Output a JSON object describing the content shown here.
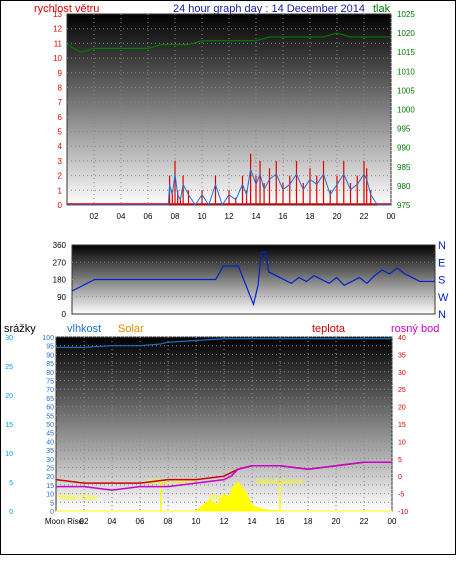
{
  "colors": {
    "wind_speed": "#e00000",
    "wind_gust_series": "#1f6fd0",
    "pressure": "#007a00",
    "direction": "#0022cc",
    "humidity": "#1f6fd0",
    "temperature": "#cc0000",
    "dewpoint": "#cc00cc",
    "solar": "#ffff00",
    "solar_label": "#e08a00",
    "rain_axis": "#0099ff",
    "label_yellow": "#ffff00"
  },
  "header": {
    "left_label": "rychlost větru",
    "title": "24 hour graph day : 14 December 2014",
    "right_label": "tlak"
  },
  "wind_panel": {
    "wind_ticks": [
      "0",
      "1",
      "2",
      "3",
      "4",
      "5",
      "6",
      "7",
      "8",
      "9",
      "10",
      "11",
      "12",
      "13"
    ],
    "pressure_ticks": [
      "975",
      "980",
      "985",
      "990",
      "995",
      "1000",
      "1005",
      "1010",
      "1015",
      "1020",
      "1025"
    ],
    "x_ticks": [
      "02",
      "04",
      "06",
      "08",
      "10",
      "12",
      "14",
      "16",
      "18",
      "20",
      "22",
      "00"
    ]
  },
  "direction_panel": {
    "deg_ticks": [
      "0",
      "90",
      "180",
      "270",
      "360"
    ],
    "compass": [
      "N",
      "W",
      "S",
      "E",
      "N"
    ]
  },
  "bottom_header": {
    "rain": "srážky",
    "humidity": "vlhkost",
    "solar": "Solar",
    "temperature": "teplota",
    "dewpoint": "rosný bod"
  },
  "bottom_panel": {
    "rain_ticks": [
      "0",
      "5",
      "10",
      "15",
      "20",
      "25",
      "30"
    ],
    "humidity_ticks": [
      "0",
      "5",
      "10",
      "15",
      "20",
      "25",
      "30",
      "35",
      "40",
      "45",
      "50",
      "55",
      "60",
      "65",
      "70",
      "75",
      "80",
      "85",
      "90",
      "95",
      "100"
    ],
    "temp_ticks": [
      "-10",
      "-5",
      "0",
      "5",
      "10",
      "15",
      "20",
      "25",
      "30",
      "35",
      "40"
    ],
    "x_ticks": [
      "Moon Rise",
      "02",
      "04",
      "06",
      "08",
      "10",
      "12",
      "14",
      "16",
      "18",
      "20",
      "22",
      "00"
    ],
    "annotations": {
      "moon_rise": "Moon Rise",
      "sunrise": "východ slunce",
      "sunset": "západ slunce",
      "moon_set": "Moon"
    }
  },
  "chart_data": [
    {
      "type": "line",
      "series": [
        {
          "name": "rychlost větru",
          "axis": "left",
          "ylim": [
            0,
            13
          ],
          "x": [
            0,
            7.5,
            7.6,
            7.8,
            8.0,
            8.2,
            8.4,
            8.6,
            9.0,
            9.5,
            10,
            10.5,
            11,
            11.5,
            12,
            12.5,
            13,
            13.3,
            13.6,
            14,
            14.3,
            14.6,
            15,
            15.5,
            16,
            16.5,
            17,
            17.5,
            18,
            18.5,
            19,
            19.5,
            20,
            20.5,
            21,
            21.5,
            22,
            22.2,
            22.5,
            23,
            24
          ],
          "values": [
            0,
            0,
            2,
            1,
            3,
            1,
            0.5,
            2,
            1,
            0,
            1,
            0,
            2,
            0,
            1,
            0.5,
            2,
            1,
            3.5,
            2,
            3,
            1.5,
            2.5,
            3,
            1.5,
            2,
            3,
            1.5,
            2.5,
            2,
            3,
            1,
            2,
            3,
            1.5,
            2,
            3,
            2.5,
            1,
            0,
            0
          ]
        },
        {
          "name": "tlak",
          "axis": "right",
          "ylim": [
            975,
            1025
          ],
          "x": [
            0,
            1,
            2,
            3,
            4,
            5,
            6,
            7,
            8,
            9,
            10,
            11,
            12,
            13,
            14,
            15,
            16,
            17,
            18,
            19,
            20,
            21,
            22,
            23,
            24
          ],
          "values": [
            1017,
            1015,
            1016,
            1016,
            1016,
            1016,
            1016,
            1017,
            1017,
            1017,
            1018,
            1018,
            1018,
            1018,
            1018,
            1019,
            1019,
            1019,
            1019,
            1019,
            1020,
            1019,
            1019,
            1019,
            1019
          ]
        }
      ],
      "xlim": [
        0,
        24
      ]
    },
    {
      "type": "line",
      "series": [
        {
          "name": "direction",
          "x": [
            0,
            1.5,
            2,
            4,
            6,
            9.5,
            10,
            11,
            11.8,
            12,
            12.3,
            12.5,
            12.8,
            13,
            13.5,
            14,
            14.5,
            15,
            15.5,
            16,
            16.5,
            17,
            17.5,
            18,
            18.5,
            19,
            19.5,
            20,
            20.5,
            21,
            21.5,
            22,
            22.5,
            23,
            24
          ],
          "values": [
            120,
            180,
            180,
            180,
            180,
            180,
            250,
            250,
            90,
            50,
            150,
            320,
            325,
            220,
            200,
            180,
            160,
            190,
            170,
            200,
            180,
            160,
            190,
            150,
            170,
            190,
            160,
            200,
            230,
            210,
            240,
            210,
            190,
            170,
            170
          ]
        }
      ],
      "ylim": [
        0,
        360
      ],
      "xlim": [
        0,
        24
      ]
    },
    {
      "type": "line",
      "series": [
        {
          "name": "vlhkost",
          "axis": "humidity",
          "ylim": [
            0,
            100
          ],
          "x": [
            0,
            2,
            4,
            6,
            7.5,
            8,
            10,
            12,
            14,
            16,
            18,
            20,
            22,
            24
          ],
          "values": [
            94,
            94,
            95,
            95,
            96,
            97,
            98,
            99,
            99,
            99,
            99,
            99,
            99,
            99
          ]
        },
        {
          "name": "teplota",
          "axis": "temp",
          "ylim": [
            -10,
            40
          ],
          "x": [
            0,
            2,
            4,
            6,
            8,
            10,
            12,
            12.5,
            13,
            14,
            16,
            18,
            20,
            22,
            24
          ],
          "values": [
            -1,
            -2,
            -2,
            -2,
            -1,
            -1,
            0,
            1,
            2,
            3,
            3,
            2,
            3,
            4,
            4
          ]
        },
        {
          "name": "rosný bod",
          "axis": "temp",
          "ylim": [
            -10,
            40
          ],
          "x": [
            0,
            2,
            4,
            6,
            8,
            10,
            12,
            12.5,
            13,
            14,
            16,
            18,
            20,
            22,
            24
          ],
          "values": [
            -3,
            -3,
            -4,
            -3,
            -3,
            -2,
            -1,
            0,
            2,
            3,
            3,
            2,
            3,
            4,
            4
          ]
        },
        {
          "name": "Solar",
          "axis": "rain",
          "ylim": [
            0,
            30
          ],
          "x": [
            0,
            10,
            10.5,
            11,
            11.5,
            12,
            12.3,
            12.6,
            13,
            13.3,
            13.6,
            14,
            14.5,
            15,
            16,
            24
          ],
          "values": [
            0,
            0,
            1,
            2,
            1,
            3,
            2,
            4,
            5,
            4,
            3,
            1,
            0.5,
            0.2,
            0,
            0
          ]
        }
      ],
      "xlim": [
        0,
        24
      ]
    }
  ]
}
